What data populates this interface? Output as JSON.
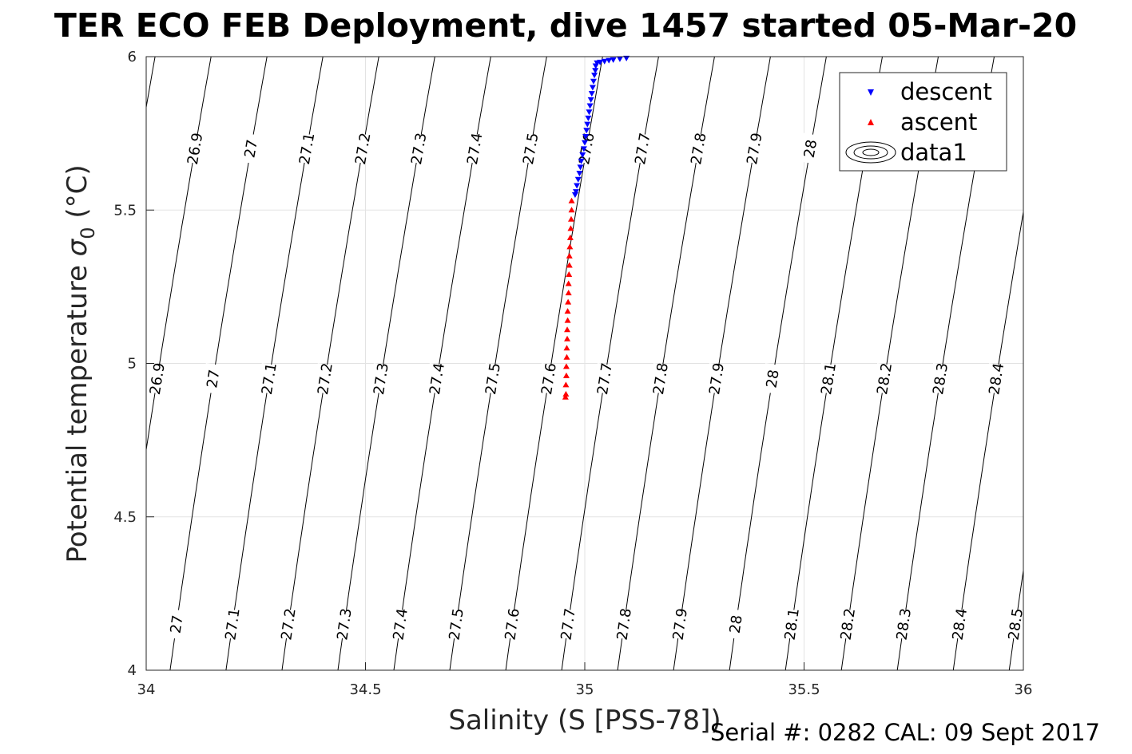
{
  "chart_data": {
    "type": "scatter",
    "title": "TER ECO FEB Deployment, dive 1457 started 05-Mar-20",
    "xlabel": "Salinity (S [PSS-78])",
    "ylabel_main": "Potential temperature ",
    "ylabel_symbol": "σ",
    "ylabel_sub": "0",
    "ylabel_unit": " (°C)",
    "xlim": [
      34,
      36
    ],
    "ylim": [
      4,
      6
    ],
    "x_ticks": [
      34,
      34.5,
      35,
      35.5,
      36
    ],
    "y_ticks": [
      4,
      4.5,
      5,
      5.5,
      6
    ],
    "x_tick_labels": [
      "34",
      "34.5",
      "35",
      "35.5",
      "36"
    ],
    "y_tick_labels": [
      "4",
      "4.5",
      "5",
      "5.5",
      "6"
    ],
    "grid": true,
    "legend_position": "top-right",
    "density_contours": {
      "levels": [
        26.9,
        27.0,
        27.1,
        27.2,
        27.3,
        27.4,
        27.5,
        27.6,
        27.7,
        27.8,
        27.9,
        28.0,
        28.1,
        28.2,
        28.3,
        28.4,
        28.5
      ],
      "level_labels": [
        "26.9",
        "27",
        "27.1",
        "27.2",
        "27.3",
        "27.4",
        "27.5",
        "27.6",
        "27.7",
        "27.8",
        "27.9",
        "28",
        "28.1",
        "28.2",
        "28.3",
        "28.4",
        "28.5"
      ],
      "label_rows": [
        {
          "temperature": 5.7,
          "levels": [
            "26.9",
            "27",
            "27.1",
            "27.2",
            "27.3",
            "27.4",
            "27.5",
            "27.6",
            "27.7",
            "27.8",
            "27.9",
            "28"
          ]
        },
        {
          "temperature": 4.95,
          "levels": [
            "26.9",
            "27",
            "27.1",
            "27.2",
            "27.3",
            "27.4",
            "27.5",
            "27.6",
            "27.7",
            "27.8",
            "27.9",
            "28",
            "28.1",
            "28.2",
            "28.3",
            "28.4"
          ]
        },
        {
          "temperature": 4.15,
          "levels": [
            "27",
            "27.1",
            "27.2",
            "27.3",
            "27.4",
            "27.5",
            "27.6",
            "27.7",
            "27.8",
            "27.9",
            "28",
            "28.1",
            "28.2",
            "28.3",
            "28.4",
            "28.5"
          ]
        }
      ]
    },
    "series": [
      {
        "name": "descent",
        "color": "#0000ff",
        "marker": "triangle-down",
        "points": [
          [
            35.095,
            5.995
          ],
          [
            35.08,
            5.993
          ],
          [
            35.065,
            5.99
          ],
          [
            35.055,
            5.988
          ],
          [
            35.045,
            5.985
          ],
          [
            35.035,
            5.982
          ],
          [
            35.028,
            5.98
          ],
          [
            35.025,
            5.97
          ],
          [
            35.024,
            5.955
          ],
          [
            35.022,
            5.94
          ],
          [
            35.02,
            5.92
          ],
          [
            35.018,
            5.9
          ],
          [
            35.016,
            5.88
          ],
          [
            35.014,
            5.86
          ],
          [
            35.012,
            5.84
          ],
          [
            35.01,
            5.82
          ],
          [
            35.008,
            5.8
          ],
          [
            35.006,
            5.78
          ],
          [
            35.004,
            5.76
          ],
          [
            35.002,
            5.74
          ],
          [
            35.0,
            5.72
          ],
          [
            34.998,
            5.7
          ],
          [
            34.995,
            5.68
          ],
          [
            34.992,
            5.66
          ],
          [
            34.99,
            5.64
          ],
          [
            34.988,
            5.62
          ],
          [
            34.985,
            5.6
          ],
          [
            34.982,
            5.58
          ],
          [
            34.98,
            5.56
          ],
          [
            34.978,
            5.55
          ]
        ]
      },
      {
        "name": "ascent",
        "color": "#ff0000",
        "marker": "triangle-up",
        "points": [
          [
            34.97,
            5.53
          ],
          [
            34.97,
            5.5
          ],
          [
            34.969,
            5.47
          ],
          [
            34.968,
            5.44
          ],
          [
            34.967,
            5.41
          ],
          [
            34.966,
            5.38
          ],
          [
            34.965,
            5.35
          ],
          [
            34.965,
            5.32
          ],
          [
            34.964,
            5.29
          ],
          [
            34.963,
            5.26
          ],
          [
            34.963,
            5.23
          ],
          [
            34.962,
            5.2
          ],
          [
            34.961,
            5.17
          ],
          [
            34.961,
            5.14
          ],
          [
            34.96,
            5.11
          ],
          [
            34.96,
            5.08
          ],
          [
            34.959,
            5.05
          ],
          [
            34.959,
            5.02
          ],
          [
            34.958,
            4.99
          ],
          [
            34.958,
            4.96
          ],
          [
            34.957,
            4.93
          ],
          [
            34.957,
            4.9
          ],
          [
            34.956,
            4.89
          ]
        ]
      },
      {
        "name": "data1",
        "color": "#000000",
        "marker": "contour"
      }
    ]
  },
  "footer": {
    "serial": "Serial #: 0282  CAL: 09 Sept 2017"
  }
}
